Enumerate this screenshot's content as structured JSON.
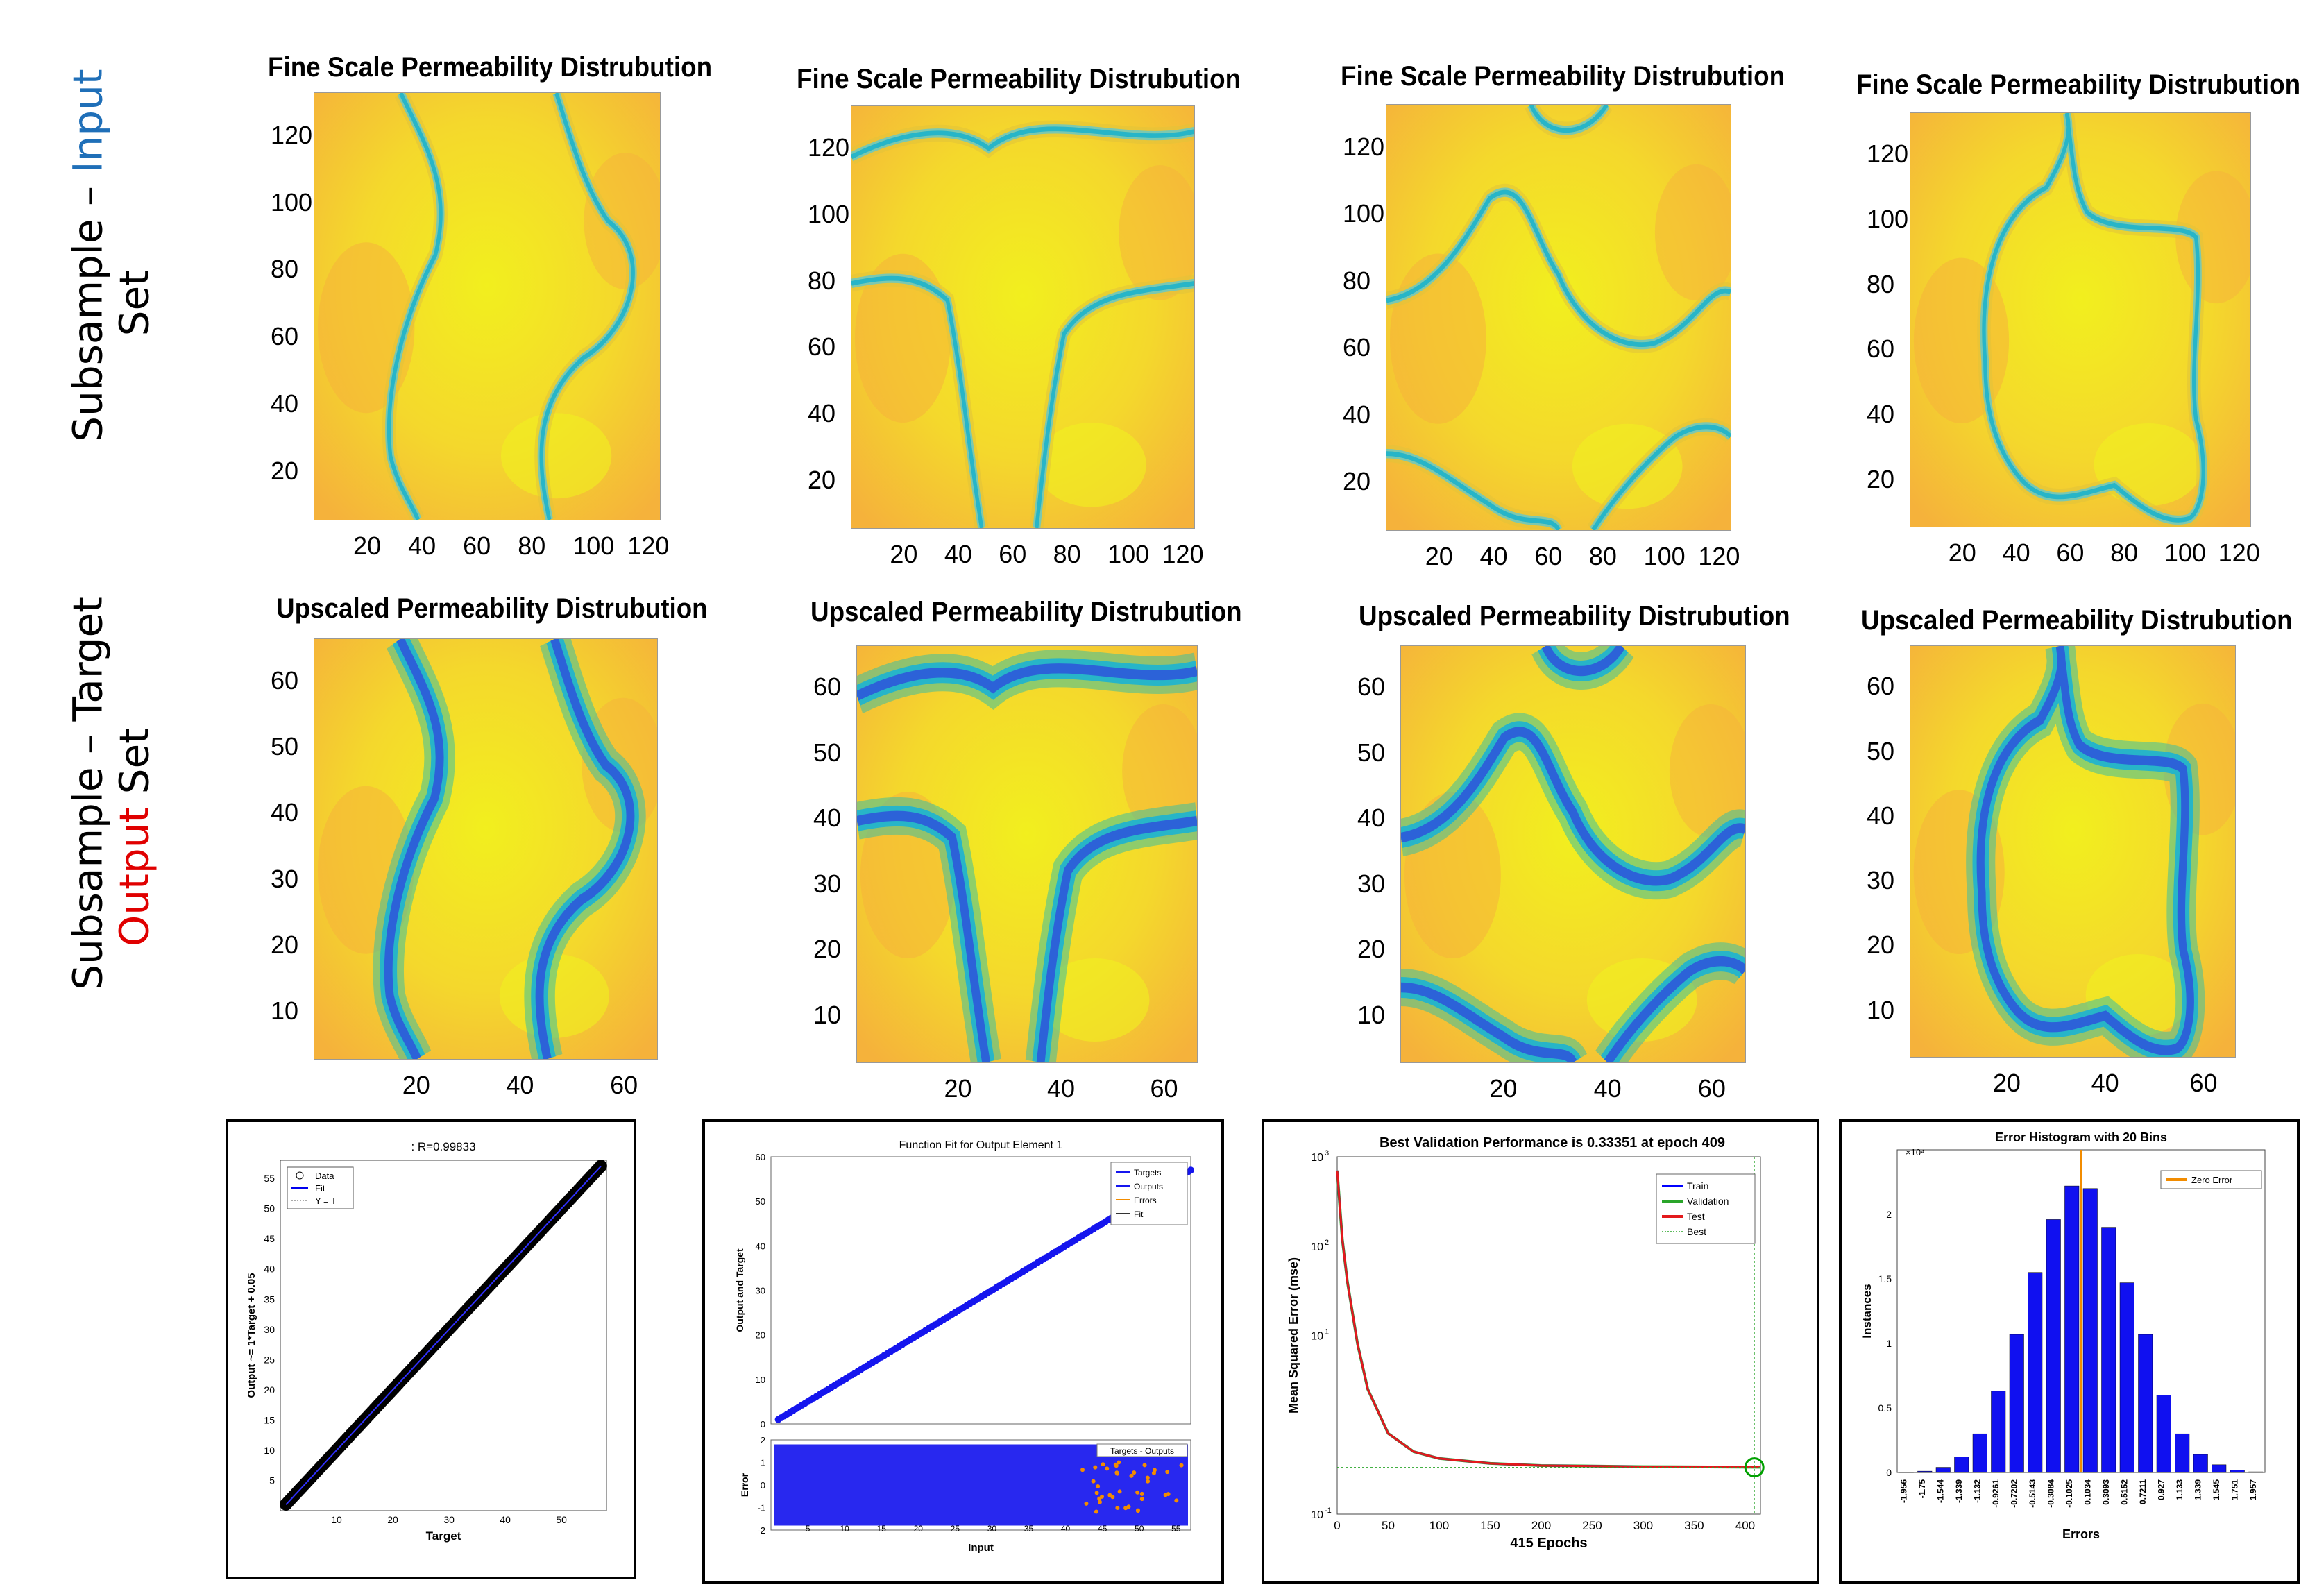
{
  "row_labels": {
    "input": {
      "prefix": "Subsample – ",
      "highlight": "Input",
      "suffix": "Set"
    },
    "output": {
      "prefix": "Subsample – Target",
      "highlight": "Output",
      "suffix": " Set"
    }
  },
  "colors": {
    "yellow": "#f2ef1e",
    "orange": "#f5b23b",
    "cyan": "#27b5c8",
    "blue": "#2c62d8",
    "green": "#2aa52a",
    "red": "#e31a1c",
    "hist_bar": "#1010f0",
    "zero_line": "#f28c00"
  },
  "fine_panels": [
    {
      "title": "Fine Scale Permeability Distrubution",
      "yticks": [
        "120",
        "100",
        "80",
        "60",
        "40",
        "20"
      ],
      "xticks": [
        "20",
        "40",
        "60",
        "80",
        "100",
        "120"
      ]
    },
    {
      "title": "Fine Scale Permeability Distrubution",
      "yticks": [
        "120",
        "100",
        "80",
        "60",
        "40",
        "20"
      ],
      "xticks": [
        "20",
        "40",
        "60",
        "80",
        "100",
        "120"
      ]
    },
    {
      "title": "Fine Scale Permeability Distrubution",
      "yticks": [
        "120",
        "100",
        "80",
        "60",
        "40",
        "20"
      ],
      "xticks": [
        "20",
        "40",
        "60",
        "80",
        "100",
        "120"
      ]
    },
    {
      "title": "Fine Scale Permeability Distrubution",
      "yticks": [
        "120",
        "100",
        "80",
        "60",
        "40",
        "20"
      ],
      "xticks": [
        "20",
        "40",
        "60",
        "80",
        "100",
        "120"
      ]
    }
  ],
  "upscaled_panels": [
    {
      "title": "Upscaled Permeability Distrubution",
      "yticks": [
        "60",
        "50",
        "40",
        "30",
        "20",
        "10"
      ],
      "xticks": [
        "20",
        "40",
        "60"
      ]
    },
    {
      "title": "Upscaled Permeability Distrubution",
      "yticks": [
        "60",
        "50",
        "40",
        "30",
        "20",
        "10"
      ],
      "xticks": [
        "20",
        "40",
        "60"
      ]
    },
    {
      "title": "Upscaled Permeability Distrubution",
      "yticks": [
        "60",
        "50",
        "40",
        "30",
        "20",
        "10"
      ],
      "xticks": [
        "20",
        "40",
        "60"
      ]
    },
    {
      "title": "Upscaled Permeability Distrubution",
      "yticks": [
        "60",
        "50",
        "40",
        "30",
        "20",
        "10"
      ],
      "xticks": [
        "20",
        "40",
        "60"
      ]
    }
  ],
  "chart_data": [
    {
      "type": "scatter",
      "title": ": R=0.99833",
      "xlabel": "Target",
      "ylabel": "Output ~= 1*Target + 0.05",
      "xlim": [
        0,
        58
      ],
      "ylim": [
        0,
        58
      ],
      "xticks": [
        "10",
        "20",
        "30",
        "40",
        "50"
      ],
      "yticks": [
        "5",
        "10",
        "15",
        "20",
        "25",
        "30",
        "35",
        "40",
        "45",
        "50",
        "55"
      ],
      "legend": [
        "Data",
        "Fit",
        "Y = T"
      ],
      "series": [
        {
          "name": "Data",
          "x_range": [
            1,
            57
          ],
          "slope": 1,
          "intercept": 0.05
        }
      ]
    },
    {
      "type": "scatter",
      "title": "Function Fit for Output Element 1",
      "xlabel": "Input",
      "ylabel": "Output and Target",
      "ylabel2": "Error",
      "xlim": [
        0,
        57
      ],
      "ylim": [
        0,
        60
      ],
      "ylim2": [
        -2,
        2
      ],
      "xticks": [
        "5",
        "10",
        "15",
        "20",
        "25",
        "30",
        "35",
        "40",
        "45",
        "50",
        "55"
      ],
      "yticks": [
        "0",
        "10",
        "20",
        "30",
        "40",
        "50",
        "60"
      ],
      "yticks2": [
        "2",
        "1",
        "0",
        "-1",
        "-2"
      ],
      "legend": [
        "Targets",
        "Outputs",
        "Errors",
        "Fit"
      ],
      "legend2": [
        "Targets - Outputs"
      ]
    },
    {
      "type": "line",
      "title": "Best Validation Performance is 0.33351 at epoch 409",
      "xlabel": "415 Epochs",
      "ylabel": "Mean Squared Error  (mse)",
      "xlim": [
        0,
        415
      ],
      "ylim_log": [
        -1,
        3
      ],
      "xticks": [
        "0",
        "50",
        "100",
        "150",
        "200",
        "250",
        "300",
        "350",
        "400"
      ],
      "ytick_exps": [
        "3",
        "2",
        "1",
        "-1"
      ],
      "best_epoch": 409,
      "best_value": 0.33351,
      "legend": [
        "Train",
        "Validation",
        "Test",
        "Best"
      ],
      "series": [
        {
          "name": "Train",
          "epochs": [
            0,
            5,
            10,
            20,
            30,
            50,
            75,
            100,
            150,
            200,
            300,
            415
          ],
          "mse": [
            700,
            120,
            40,
            8,
            2.5,
            0.8,
            0.5,
            0.42,
            0.37,
            0.35,
            0.34,
            0.335
          ]
        }
      ]
    },
    {
      "type": "bar",
      "title": "Error Histogram with 20 Bins",
      "xlabel": "Errors",
      "ylabel": "Instances",
      "scale_label": "×10⁴",
      "yticks": [
        "2",
        "1.5",
        "1",
        "0.5",
        "0"
      ],
      "ylim": [
        0,
        2.5
      ],
      "legend": [
        "Zero Error"
      ],
      "categories": [
        "-1.956",
        "-1.75",
        "-1.544",
        "-1.339",
        "-1.132",
        "-0.9261",
        "-0.7202",
        "-0.5143",
        "-0.3084",
        "-0.1025",
        "0.1034",
        "0.3093",
        "0.5152",
        "0.7211",
        "0.927",
        "1.133",
        "1.339",
        "1.545",
        "1.751",
        "1.957"
      ],
      "values": [
        0.002,
        0.01,
        0.04,
        0.12,
        0.3,
        0.63,
        1.07,
        1.55,
        1.96,
        2.22,
        2.2,
        1.9,
        1.47,
        1.07,
        0.6,
        0.3,
        0.14,
        0.06,
        0.02,
        0.005
      ]
    }
  ]
}
